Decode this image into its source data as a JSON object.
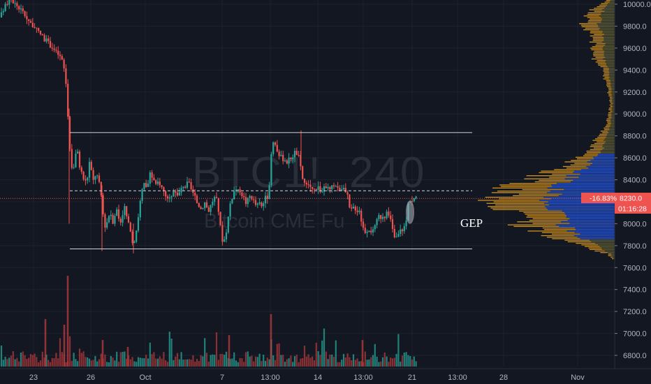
{
  "watermark": {
    "symbol": "BTC1!",
    "interval": "240",
    "name": "Bitcoin CME Fu"
  },
  "annotation": {
    "text": "GEP"
  },
  "price_tag": {
    "change": "-16.83%",
    "price": "8230.0",
    "countdown": "01:16:28",
    "color": "#ef5350",
    "countdown_color": "#ef5350"
  },
  "colors": {
    "up": "#26a69a",
    "down": "#ef5350",
    "up_vol": "#26a69a",
    "down_vol": "#b2393b",
    "vp_main": "#2962ff",
    "vp_side": "#f2a81d"
  },
  "chart_data": {
    "type": "candlestick",
    "symbol": "BTC1!",
    "interval": "240",
    "y_axis_ticks": [
      10000,
      9800,
      9600,
      9400,
      9200,
      9000,
      8800,
      8600,
      8400,
      8200,
      8000,
      7800,
      7600,
      7400,
      7200,
      7000,
      6800
    ],
    "ylim": [
      6690,
      10040
    ],
    "x_axis_ticks": [
      "23",
      "26",
      "Oct",
      "7",
      "13:00",
      "14",
      "13:00",
      "21",
      "13:00",
      "28",
      "Nov"
    ],
    "last_price": 8230.0,
    "change_percent": -16.83,
    "levels": [
      {
        "price": 8830,
        "style": "solid"
      },
      {
        "price": 8300,
        "style": "dashed"
      },
      {
        "price": 7770,
        "style": "solid"
      }
    ],
    "price_path": [
      [
        0,
        9880
      ],
      [
        6,
        9960
      ],
      [
        14,
        10060
      ],
      [
        22,
        10000
      ],
      [
        30,
        9950
      ],
      [
        38,
        9880
      ],
      [
        45,
        9820
      ],
      [
        52,
        9760
      ],
      [
        58,
        9730
      ],
      [
        64,
        9680
      ],
      [
        70,
        9640
      ],
      [
        76,
        9600
      ],
      [
        80,
        9560
      ],
      [
        84,
        9540
      ],
      [
        88,
        9500
      ],
      [
        92,
        9400
      ],
      [
        95,
        9250
      ],
      [
        97,
        9000
      ],
      [
        99,
        8800
      ],
      [
        101,
        8600
      ],
      [
        104,
        8450
      ],
      [
        107,
        8600
      ],
      [
        110,
        8700
      ],
      [
        113,
        8550
      ],
      [
        116,
        8480
      ],
      [
        119,
        8420
      ],
      [
        122,
        8380
      ],
      [
        125,
        8420
      ],
      [
        128,
        8560
      ],
      [
        131,
        8470
      ],
      [
        134,
        8380
      ],
      [
        137,
        8460
      ],
      [
        140,
        8420
      ],
      [
        143,
        8330
      ],
      [
        146,
        8210
      ],
      [
        149,
        7980
      ],
      [
        152,
        7990
      ],
      [
        155,
        8060
      ],
      [
        158,
        8120
      ],
      [
        161,
        8010
      ],
      [
        164,
        8080
      ],
      [
        167,
        8130
      ],
      [
        170,
        8050
      ],
      [
        173,
        8020
      ],
      [
        176,
        8110
      ],
      [
        179,
        8160
      ],
      [
        182,
        8030
      ],
      [
        185,
        7970
      ],
      [
        188,
        7860
      ],
      [
        191,
        7820
      ],
      [
        194,
        7900
      ],
      [
        197,
        8020
      ],
      [
        200,
        8170
      ],
      [
        203,
        8290
      ],
      [
        206,
        8360
      ],
      [
        209,
        8320
      ],
      [
        212,
        8370
      ],
      [
        215,
        8450
      ],
      [
        218,
        8420
      ],
      [
        221,
        8380
      ],
      [
        224,
        8330
      ],
      [
        227,
        8400
      ],
      [
        230,
        8350
      ],
      [
        233,
        8310
      ],
      [
        236,
        8280
      ],
      [
        239,
        8240
      ],
      [
        242,
        8200
      ],
      [
        245,
        8260
      ],
      [
        248,
        8290
      ],
      [
        251,
        8310
      ],
      [
        254,
        8250
      ],
      [
        257,
        8280
      ],
      [
        260,
        8320
      ],
      [
        263,
        8360
      ],
      [
        266,
        8330
      ],
      [
        269,
        8380
      ],
      [
        272,
        8340
      ],
      [
        275,
        8290
      ],
      [
        278,
        8250
      ],
      [
        281,
        8200
      ],
      [
        284,
        8180
      ],
      [
        287,
        8130
      ],
      [
        290,
        8160
      ],
      [
        293,
        8200
      ],
      [
        296,
        8150
      ],
      [
        299,
        8120
      ],
      [
        302,
        8170
      ],
      [
        305,
        8220
      ],
      [
        308,
        8240
      ],
      [
        311,
        8200
      ],
      [
        314,
        8070
      ],
      [
        317,
        7880
      ],
      [
        320,
        7830
      ],
      [
        323,
        7900
      ],
      [
        326,
        8020
      ],
      [
        329,
        8170
      ],
      [
        332,
        8240
      ],
      [
        335,
        8290
      ],
      [
        338,
        8320
      ],
      [
        341,
        8290
      ],
      [
        344,
        8310
      ],
      [
        347,
        8260
      ],
      [
        350,
        8220
      ],
      [
        353,
        8180
      ],
      [
        356,
        8240
      ],
      [
        359,
        8260
      ],
      [
        362,
        8220
      ],
      [
        365,
        8180
      ],
      [
        368,
        8160
      ],
      [
        371,
        8190
      ],
      [
        374,
        8150
      ],
      [
        377,
        8190
      ],
      [
        380,
        8230
      ],
      [
        383,
        8200
      ],
      [
        386,
        8350
      ],
      [
        389,
        8700
      ],
      [
        392,
        8760
      ],
      [
        395,
        8720
      ],
      [
        398,
        8650
      ],
      [
        401,
        8620
      ],
      [
        404,
        8590
      ],
      [
        407,
        8600
      ],
      [
        410,
        8560
      ],
      [
        413,
        8580
      ],
      [
        416,
        8600
      ],
      [
        419,
        8620
      ],
      [
        422,
        8650
      ],
      [
        425,
        8640
      ],
      [
        428,
        8600
      ],
      [
        431,
        8480
      ],
      [
        434,
        8390
      ],
      [
        437,
        8360
      ],
      [
        440,
        8330
      ],
      [
        443,
        8350
      ],
      [
        446,
        8320
      ],
      [
        449,
        8300
      ],
      [
        452,
        8330
      ],
      [
        455,
        8340
      ],
      [
        458,
        8310
      ],
      [
        461,
        8290
      ],
      [
        464,
        8320
      ],
      [
        467,
        8340
      ],
      [
        470,
        8320
      ],
      [
        473,
        8300
      ],
      [
        476,
        8340
      ],
      [
        479,
        8370
      ],
      [
        482,
        8330
      ],
      [
        485,
        8300
      ],
      [
        488,
        8340
      ],
      [
        491,
        8310
      ],
      [
        494,
        8290
      ],
      [
        497,
        8270
      ],
      [
        500,
        8140
      ],
      [
        503,
        8120
      ],
      [
        506,
        8150
      ],
      [
        509,
        8140
      ],
      [
        512,
        8120
      ],
      [
        515,
        8130
      ],
      [
        518,
        8000
      ],
      [
        521,
        7940
      ],
      [
        524,
        7930
      ],
      [
        527,
        7960
      ],
      [
        530,
        7950
      ],
      [
        533,
        7920
      ],
      [
        536,
        7950
      ],
      [
        539,
        8010
      ],
      [
        542,
        8070
      ],
      [
        545,
        8060
      ],
      [
        548,
        8080
      ],
      [
        551,
        8070
      ],
      [
        554,
        8090
      ],
      [
        557,
        8060
      ],
      [
        560,
        8020
      ],
      [
        563,
        7900
      ],
      [
        566,
        7860
      ],
      [
        569,
        7880
      ],
      [
        572,
        7930
      ],
      [
        575,
        7950
      ],
      [
        578,
        7960
      ],
      [
        581,
        7990
      ],
      [
        584,
        8180
      ],
      [
        587,
        8230
      ],
      [
        590,
        8210
      ],
      [
        593,
        8230
      ],
      [
        596,
        8230
      ]
    ],
    "volume_profile": [
      [
        6690,
        0
      ],
      [
        7650,
        0
      ],
      [
        7720,
        10
      ],
      [
        7780,
        40
      ],
      [
        7830,
        70
      ],
      [
        7880,
        100
      ],
      [
        7930,
        120
      ],
      [
        8000,
        140
      ],
      [
        8070,
        150
      ],
      [
        8150,
        160
      ],
      [
        8230,
        175
      ],
      [
        8300,
        165
      ],
      [
        8380,
        135
      ],
      [
        8460,
        100
      ],
      [
        8540,
        70
      ],
      [
        8620,
        50
      ],
      [
        8700,
        35
      ],
      [
        8780,
        25
      ],
      [
        8860,
        16
      ],
      [
        8950,
        10
      ],
      [
        9100,
        6
      ],
      [
        9300,
        14
      ],
      [
        9420,
        20
      ],
      [
        9520,
        34
      ],
      [
        9620,
        30
      ],
      [
        9720,
        36
      ],
      [
        9800,
        50
      ],
      [
        9880,
        42
      ],
      [
        9950,
        32
      ],
      [
        10000,
        22
      ],
      [
        10040,
        12
      ]
    ]
  }
}
